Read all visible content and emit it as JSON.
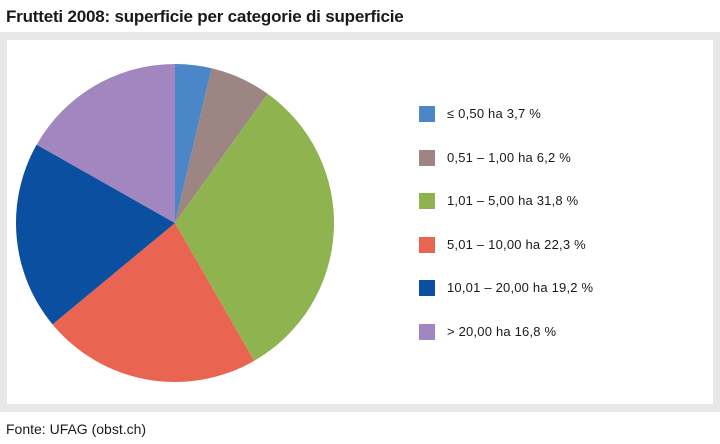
{
  "title": "Frutteti 2008: superficie per categorie di superficie",
  "source": "Fonte: UFAG (obst.ch)",
  "chart_data": {
    "type": "pie",
    "title": "Frutteti 2008: superficie per categorie di superficie",
    "legend_position": "right",
    "start_angle_deg": 0,
    "direction": "clockwise",
    "slices": [
      {
        "label": "≤ 0,50 ha 3,7 %",
        "value": 3.7,
        "color": "#4a86c8"
      },
      {
        "label": "0,51 – 1,00 ha 6,2 %",
        "value": 6.2,
        "color": "#9c8583"
      },
      {
        "label": "1,01 – 5,00 ha 31,8 %",
        "value": 31.8,
        "color": "#8fb34e"
      },
      {
        "label": "5,01 – 10,00 ha 22,3 %",
        "value": 22.3,
        "color": "#ea6452"
      },
      {
        "label": "10,01 – 20,00 ha 19,2 %",
        "value": 19.2,
        "color": "#0a4fa0"
      },
      {
        "label": "> 20,00 ha 16,8 %",
        "value": 16.8,
        "color": "#a286c0"
      }
    ]
  }
}
